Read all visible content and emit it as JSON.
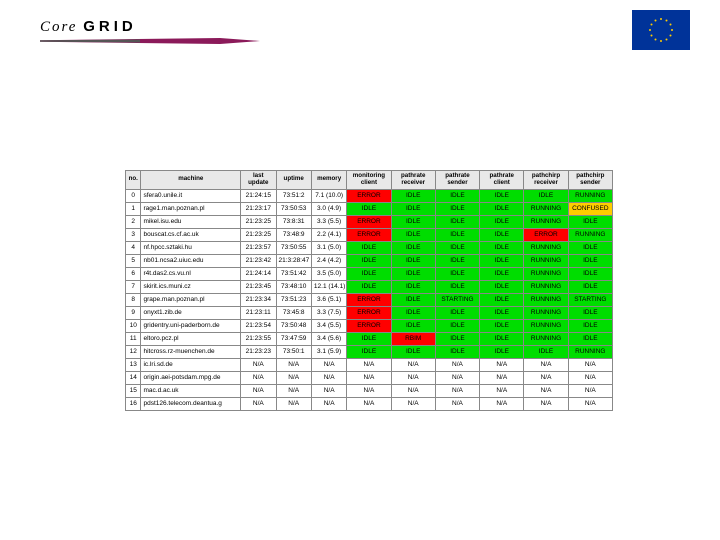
{
  "logo": {
    "text1": "Core",
    "text2": "GRID"
  },
  "columns": [
    "no.",
    "machine",
    "last update",
    "uptime",
    "memory",
    "monitoring client",
    "pathrate receiver",
    "pathrate sender",
    "pathrate client",
    "pathchirp receiver",
    "pathchirp sender"
  ],
  "status_colors": {
    "IDLE": "#00dd00",
    "RUNNING": "#00dd00",
    "STARTING": "#00dd00",
    "ERROR": "#ff0000",
    "RBIM": "#ff0000",
    "CONFUSED": "#ffcc00",
    "N/A": ""
  },
  "rows": [
    {
      "no": "0",
      "machine": "sfera0.unile.it",
      "last": "21:24:15",
      "uptime": "73:51:2",
      "memory": "7.1 (10.0)",
      "cells": [
        [
          "ERROR",
          "s-error"
        ],
        [
          "IDLE",
          "s-idle"
        ],
        [
          "IDLE",
          "s-idle"
        ],
        [
          "IDLE",
          "s-idle"
        ],
        [
          "IDLE",
          "s-idle"
        ],
        [
          "RUNNING",
          "s-running"
        ]
      ]
    },
    {
      "no": "1",
      "machine": "rage1.man.poznan.pl",
      "last": "21:23:17",
      "uptime": "73:50:53",
      "memory": "3.0 (4.9)",
      "cells": [
        [
          "IDLE",
          "s-idle"
        ],
        [
          "IDLE",
          "s-idle"
        ],
        [
          "IDLE",
          "s-idle"
        ],
        [
          "IDLE",
          "s-idle"
        ],
        [
          "RUNNING",
          "s-running"
        ],
        [
          "CONFUSED",
          "s-confused"
        ]
      ]
    },
    {
      "no": "2",
      "machine": "mikel.isu.edu",
      "last": "21:23:25",
      "uptime": "73:8:31",
      "memory": "3.3 (5.5)",
      "cells": [
        [
          "ERROR",
          "s-error"
        ],
        [
          "IDLE",
          "s-idle"
        ],
        [
          "IDLE",
          "s-idle"
        ],
        [
          "IDLE",
          "s-idle"
        ],
        [
          "RUNNING",
          "s-running"
        ],
        [
          "IDLE",
          "s-idle"
        ]
      ]
    },
    {
      "no": "3",
      "machine": "bouscat.cs.cf.ac.uk",
      "last": "21:23:25",
      "uptime": "73:48:9",
      "memory": "2.2 (4.1)",
      "cells": [
        [
          "ERROR",
          "s-error"
        ],
        [
          "IDLE",
          "s-idle"
        ],
        [
          "IDLE",
          "s-idle"
        ],
        [
          "IDLE",
          "s-idle"
        ],
        [
          "ERROR",
          "s-error"
        ],
        [
          "RUNNING",
          "s-running"
        ]
      ]
    },
    {
      "no": "4",
      "machine": "nf.hpcc.sztaki.hu",
      "last": "21:23:57",
      "uptime": "73:50:55",
      "memory": "3.1 (5.0)",
      "cells": [
        [
          "IDLE",
          "s-idle"
        ],
        [
          "IDLE",
          "s-idle"
        ],
        [
          "IDLE",
          "s-idle"
        ],
        [
          "IDLE",
          "s-idle"
        ],
        [
          "RUNNING",
          "s-running"
        ],
        [
          "IDLE",
          "s-idle"
        ]
      ]
    },
    {
      "no": "5",
      "machine": "nb01.ncsa2.uiuc.edu",
      "last": "21:23:42",
      "uptime": "21:3:28:47",
      "memory": "2.4 (4.2)",
      "cells": [
        [
          "IDLE",
          "s-idle"
        ],
        [
          "IDLE",
          "s-idle"
        ],
        [
          "IDLE",
          "s-idle"
        ],
        [
          "IDLE",
          "s-idle"
        ],
        [
          "RUNNING",
          "s-running"
        ],
        [
          "IDLE",
          "s-idle"
        ]
      ]
    },
    {
      "no": "6",
      "machine": "r4t.das2.cs.vu.nl",
      "last": "21:24:14",
      "uptime": "73:51:42",
      "memory": "3.5 (5.0)",
      "cells": [
        [
          "IDLE",
          "s-idle"
        ],
        [
          "IDLE",
          "s-idle"
        ],
        [
          "IDLE",
          "s-idle"
        ],
        [
          "IDLE",
          "s-idle"
        ],
        [
          "RUNNING",
          "s-running"
        ],
        [
          "IDLE",
          "s-idle"
        ]
      ]
    },
    {
      "no": "7",
      "machine": "skirit.ics.muni.cz",
      "last": "21:23:45",
      "uptime": "73:48:10",
      "memory": "12.1 (14.1)",
      "cells": [
        [
          "IDLE",
          "s-idle"
        ],
        [
          "IDLE",
          "s-idle"
        ],
        [
          "IDLE",
          "s-idle"
        ],
        [
          "IDLE",
          "s-idle"
        ],
        [
          "RUNNING",
          "s-running"
        ],
        [
          "IDLE",
          "s-idle"
        ]
      ]
    },
    {
      "no": "8",
      "machine": "grape.man.poznan.pl",
      "last": "21:23:34",
      "uptime": "73:51:23",
      "memory": "3.6 (5.1)",
      "cells": [
        [
          "ERROR",
          "s-error"
        ],
        [
          "IDLE",
          "s-idle"
        ],
        [
          "STARTING",
          "s-starting"
        ],
        [
          "IDLE",
          "s-idle"
        ],
        [
          "RUNNING",
          "s-running"
        ],
        [
          "STARTING",
          "s-starting"
        ]
      ]
    },
    {
      "no": "9",
      "machine": "onyxt1.zib.de",
      "last": "21:23:11",
      "uptime": "73:45:8",
      "memory": "3.3 (7.5)",
      "cells": [
        [
          "ERROR",
          "s-error"
        ],
        [
          "IDLE",
          "s-idle"
        ],
        [
          "IDLE",
          "s-idle"
        ],
        [
          "IDLE",
          "s-idle"
        ],
        [
          "RUNNING",
          "s-running"
        ],
        [
          "IDLE",
          "s-idle"
        ]
      ]
    },
    {
      "no": "10",
      "machine": "gridentry.uni-paderborn.de",
      "last": "21:23:54",
      "uptime": "73:50:48",
      "memory": "3.4 (5.5)",
      "cells": [
        [
          "ERROR",
          "s-error"
        ],
        [
          "IDLE",
          "s-idle"
        ],
        [
          "IDLE",
          "s-idle"
        ],
        [
          "IDLE",
          "s-idle"
        ],
        [
          "RUNNING",
          "s-running"
        ],
        [
          "IDLE",
          "s-idle"
        ]
      ]
    },
    {
      "no": "11",
      "machine": "eltoro.pcz.pl",
      "last": "21:23:55",
      "uptime": "73:47:59",
      "memory": "3.4 (5.6)",
      "cells": [
        [
          "IDLE",
          "s-idle"
        ],
        [
          "RBIM",
          "s-red"
        ],
        [
          "IDLE",
          "s-idle"
        ],
        [
          "IDLE",
          "s-idle"
        ],
        [
          "RUNNING",
          "s-running"
        ],
        [
          "IDLE",
          "s-idle"
        ]
      ]
    },
    {
      "no": "12",
      "machine": "hitcross.rz-muenchen.de",
      "last": "21:23:23",
      "uptime": "73:50:1",
      "memory": "3.1 (5.9)",
      "cells": [
        [
          "IDLE",
          "s-idle"
        ],
        [
          "IDLE",
          "s-idle"
        ],
        [
          "IDLE",
          "s-idle"
        ],
        [
          "IDLE",
          "s-idle"
        ],
        [
          "IDLE",
          "s-idle"
        ],
        [
          "RUNNING",
          "s-running"
        ]
      ]
    },
    {
      "no": "13",
      "machine": "ic.lri.sd.de",
      "last": "N/A",
      "uptime": "N/A",
      "memory": "N/A",
      "cells": [
        [
          "N/A",
          ""
        ],
        [
          "N/A",
          ""
        ],
        [
          "N/A",
          ""
        ],
        [
          "N/A",
          ""
        ],
        [
          "N/A",
          ""
        ],
        [
          "N/A",
          ""
        ]
      ]
    },
    {
      "no": "14",
      "machine": "origin.aei-potsdam.mpg.de",
      "last": "N/A",
      "uptime": "N/A",
      "memory": "N/A",
      "cells": [
        [
          "N/A",
          ""
        ],
        [
          "N/A",
          ""
        ],
        [
          "N/A",
          ""
        ],
        [
          "N/A",
          ""
        ],
        [
          "N/A",
          ""
        ],
        [
          "N/A",
          ""
        ]
      ]
    },
    {
      "no": "15",
      "machine": "mac.d.ac.uk",
      "last": "N/A",
      "uptime": "N/A",
      "memory": "N/A",
      "cells": [
        [
          "N/A",
          ""
        ],
        [
          "N/A",
          ""
        ],
        [
          "N/A",
          ""
        ],
        [
          "N/A",
          ""
        ],
        [
          "N/A",
          ""
        ],
        [
          "N/A",
          ""
        ]
      ]
    },
    {
      "no": "16",
      "machine": "pdst126.telecom.deantua.g",
      "last": "N/A",
      "uptime": "N/A",
      "memory": "N/A",
      "cells": [
        [
          "N/A",
          ""
        ],
        [
          "N/A",
          ""
        ],
        [
          "N/A",
          ""
        ],
        [
          "N/A",
          ""
        ],
        [
          "N/A",
          ""
        ],
        [
          "N/A",
          ""
        ]
      ]
    }
  ]
}
